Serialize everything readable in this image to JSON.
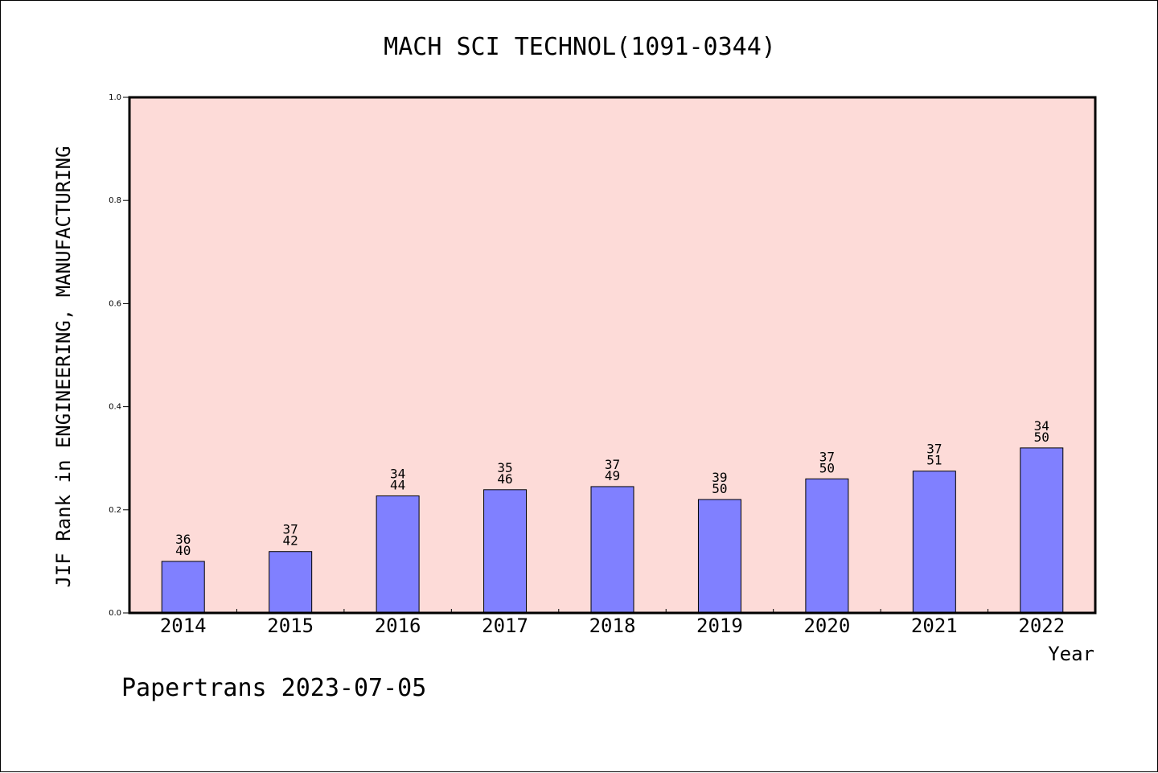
{
  "chart_data": {
    "type": "bar",
    "title": "MACH SCI TECHNOL(1091-0344)",
    "xlabel": "Year",
    "ylabel": "JIF Rank in ENGINEERING, MANUFACTURING",
    "ylim": [
      0,
      1.0
    ],
    "yticks": [
      "0.0",
      "0.2",
      "0.4",
      "0.6",
      "0.8",
      "1.0"
    ],
    "categories": [
      "2014",
      "2015",
      "2016",
      "2017",
      "2018",
      "2019",
      "2020",
      "2021",
      "2022"
    ],
    "values": [
      0.1,
      0.119,
      0.227,
      0.239,
      0.245,
      0.22,
      0.26,
      0.275,
      0.32
    ],
    "rank_labels": [
      "36",
      "37",
      "34",
      "35",
      "37",
      "39",
      "37",
      "37",
      "34"
    ],
    "total_labels": [
      "40",
      "42",
      "44",
      "46",
      "49",
      "50",
      "50",
      "51",
      "50"
    ],
    "grid": false,
    "legend": "none",
    "colors": {
      "bar": "#8080ff",
      "plot_bg": "#fddbd8",
      "axis": "#000000"
    }
  },
  "footer": {
    "text": "Papertrans 2023-07-05"
  }
}
